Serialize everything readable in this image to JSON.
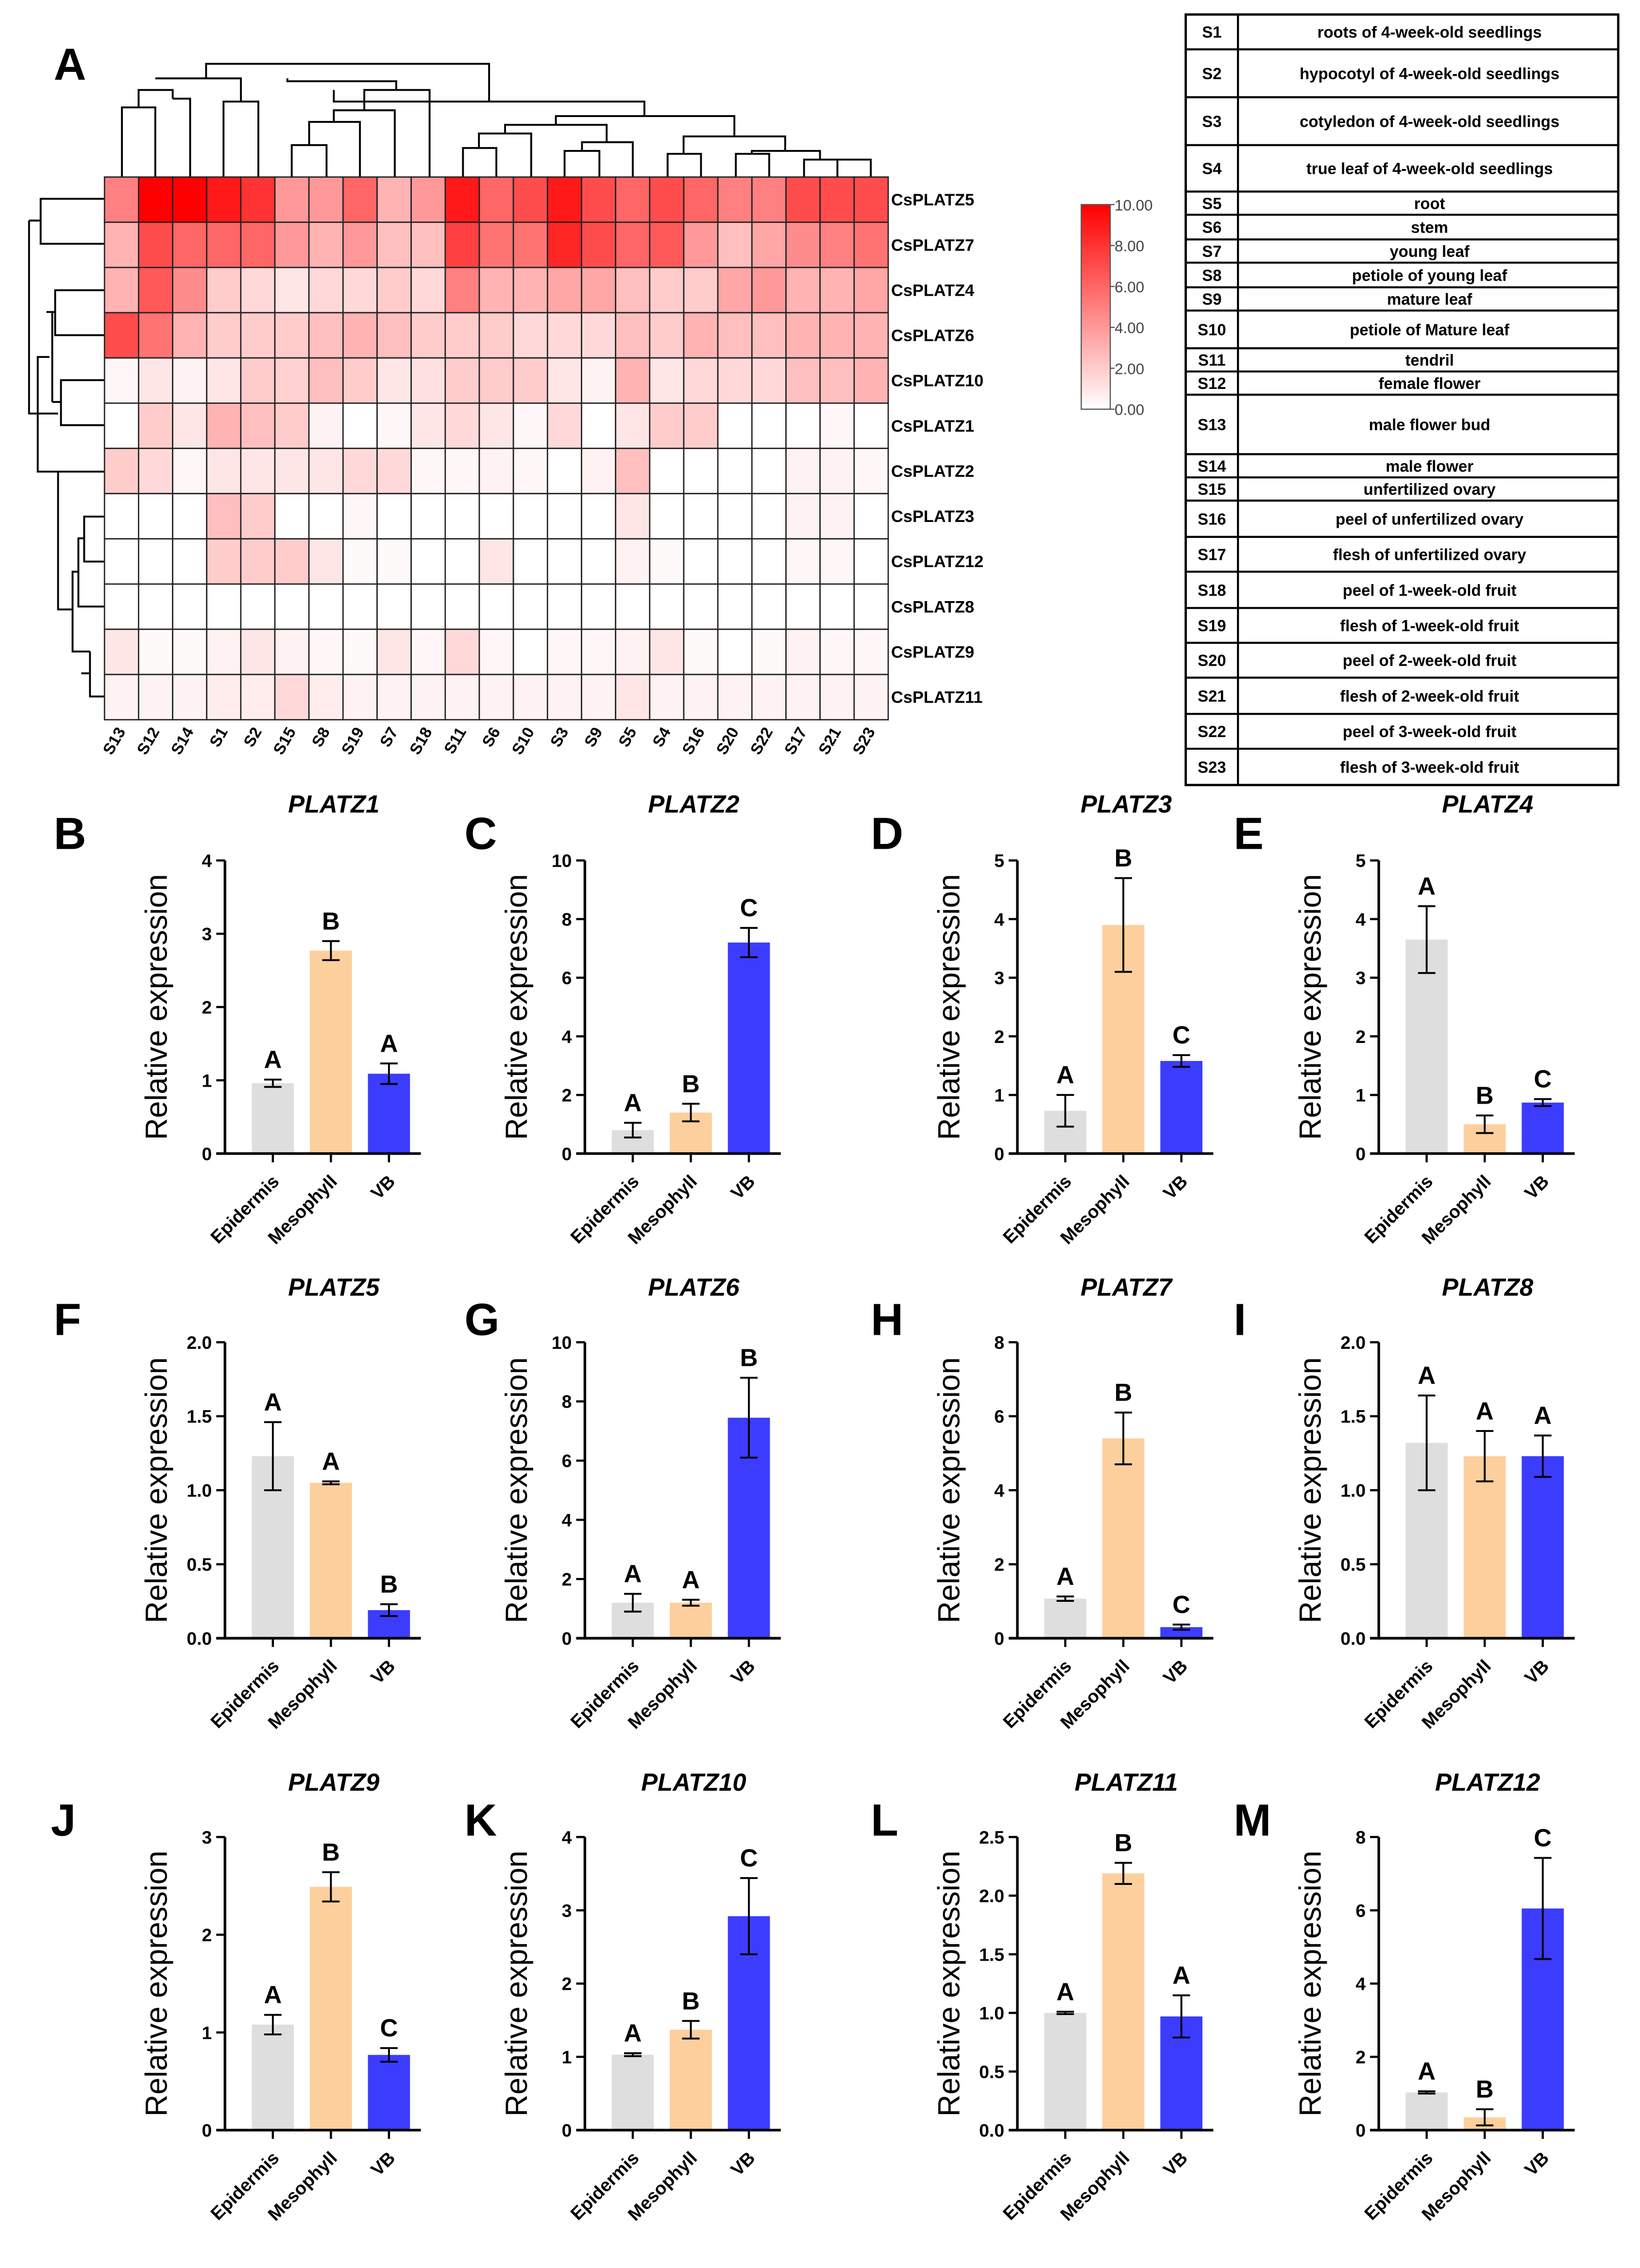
{
  "panel_letters": [
    "A",
    "B",
    "C",
    "D",
    "E",
    "F",
    "G",
    "H",
    "I",
    "J",
    "K",
    "L",
    "M"
  ],
  "legend_table": [
    [
      "S1",
      "roots of 4-week-old seedlings"
    ],
    [
      "S2",
      "hypocotyl of 4-week-old seedlings"
    ],
    [
      "S3",
      "cotyledon of 4-week-old seedlings"
    ],
    [
      "S4",
      "true leaf of 4-week-old seedlings"
    ],
    [
      "S5",
      "root"
    ],
    [
      "S6",
      "stem"
    ],
    [
      "S7",
      "young leaf"
    ],
    [
      "S8",
      "petiole of young leaf"
    ],
    [
      "S9",
      "mature leaf"
    ],
    [
      "S10",
      "petiole of Mature leaf"
    ],
    [
      "S11",
      "tendril"
    ],
    [
      "S12",
      "female flower"
    ],
    [
      "S13",
      "male flower bud"
    ],
    [
      "S14",
      "male flower"
    ],
    [
      "S15",
      "unfertilized ovary"
    ],
    [
      "S16",
      "peel of unfertilized ovary"
    ],
    [
      "S17",
      "flesh of unfertilized ovary"
    ],
    [
      "S18",
      "peel of 1-week-old fruit"
    ],
    [
      "S19",
      "flesh of 1-week-old fruit"
    ],
    [
      "S20",
      "peel of 2-week-old fruit"
    ],
    [
      "S21",
      "flesh of 2-week-old fruit"
    ],
    [
      "S22",
      "peel of 3-week-old fruit"
    ],
    [
      "S23",
      "flesh of 3-week-old fruit"
    ]
  ],
  "colors": {
    "low": "#ffffff",
    "high": "#ff0000",
    "epidermis": "#dedede",
    "mesophyll": "#fdcf9d",
    "vb": "#3c3cff"
  },
  "chart_data": [
    {
      "type": "heatmap",
      "columns": [
        "S13",
        "S12",
        "S14",
        "S1",
        "S2",
        "S15",
        "S8",
        "S19",
        "S7",
        "S18",
        "S11",
        "S6",
        "S10",
        "S3",
        "S9",
        "S5",
        "S4",
        "S16",
        "S20",
        "S22",
        "S17",
        "S21",
        "S23"
      ],
      "rows": [
        "CsPLATZ5",
        "CsPLATZ7",
        "CsPLATZ4",
        "CsPLATZ6",
        "CsPLATZ10",
        "CsPLATZ1",
        "CsPLATZ2",
        "CsPLATZ3",
        "CsPLATZ12",
        "CsPLATZ8",
        "CsPLATZ9",
        "CsPLATZ11"
      ],
      "values": [
        [
          5,
          10,
          10,
          9,
          8,
          4,
          4,
          6,
          3,
          4,
          9,
          6,
          7,
          9,
          7,
          6,
          7,
          6,
          5,
          5,
          7,
          7,
          7
        ],
        [
          3,
          7,
          6,
          6,
          6,
          4,
          3,
          4,
          2.5,
          2.5,
          7.5,
          5.5,
          5.5,
          8.5,
          7,
          6,
          6.5,
          4,
          2.5,
          3.5,
          4.5,
          5,
          5.5
        ],
        [
          3,
          6.5,
          4.5,
          2,
          1.5,
          1,
          1.5,
          1.5,
          2,
          1.5,
          5,
          3,
          3,
          3.5,
          3.5,
          2.5,
          2,
          2,
          3.5,
          4,
          3,
          3,
          3.5
        ],
        [
          7,
          5.5,
          3,
          2,
          2,
          2,
          2.5,
          3,
          2.5,
          2,
          2,
          2,
          1.5,
          1.5,
          1.5,
          2.5,
          2,
          3,
          2.5,
          2.5,
          3,
          3,
          3
        ],
        [
          0.3,
          1,
          0.5,
          1,
          2,
          1.8,
          2.5,
          2,
          1,
          1.2,
          2,
          2,
          2,
          1,
          0.5,
          3,
          1,
          1.5,
          1.5,
          1.5,
          2.5,
          2.5,
          3
        ],
        [
          0,
          2,
          1,
          3,
          2.5,
          2,
          0.5,
          0,
          0.3,
          1,
          1.5,
          1,
          0.3,
          1.5,
          0,
          1,
          2,
          2,
          0,
          0,
          0,
          0.3,
          0
        ],
        [
          2,
          1.5,
          0.3,
          1,
          1,
          1,
          1,
          1.5,
          1.5,
          0.3,
          0.3,
          0.5,
          0.3,
          0,
          0.5,
          2.5,
          0,
          0,
          0,
          0,
          0.5,
          0.5,
          0.3
        ],
        [
          0,
          0,
          0,
          2.5,
          2,
          0,
          0,
          0.3,
          0,
          0,
          0,
          0,
          0,
          0,
          0,
          1,
          0,
          0,
          0,
          0,
          0.5,
          0.5,
          0
        ],
        [
          0,
          0,
          0,
          2,
          2,
          2,
          1,
          0.2,
          0.2,
          0,
          0,
          1,
          0,
          0,
          0,
          0.5,
          0.2,
          0,
          0,
          0,
          0.3,
          0.3,
          0
        ],
        [
          0,
          0,
          0,
          0,
          0,
          0,
          0,
          0,
          0,
          0,
          0,
          0,
          0,
          0,
          0,
          0,
          0,
          0,
          0,
          0,
          0,
          0,
          0
        ],
        [
          1,
          0.2,
          0.2,
          0.5,
          1,
          0.5,
          0.3,
          0.2,
          1,
          0.3,
          1.5,
          0.3,
          0,
          0.3,
          0.3,
          0.5,
          1,
          0.2,
          0,
          0.2,
          0.5,
          0.3,
          0.3
        ],
        [
          0.5,
          0.5,
          0.5,
          0.7,
          0.7,
          1.5,
          0.7,
          0.5,
          0.5,
          0.5,
          0.5,
          0.5,
          0.5,
          0.5,
          0.5,
          1,
          0.5,
          0.5,
          0.5,
          0.5,
          0.5,
          0.5,
          0.5
        ]
      ],
      "range": [
        0,
        10
      ],
      "colorbar_ticks": [
        "0.00",
        "2.00",
        "4.00",
        "6.00",
        "8.00",
        "10.00"
      ]
    },
    {
      "type": "bar",
      "title": "PLATZ1",
      "ylabel": "Relative expression",
      "categories": [
        "Epidermis",
        "Mesophyll",
        "VB"
      ],
      "values": [
        0.96,
        2.77,
        1.09
      ],
      "errors": [
        0.05,
        0.13,
        0.14
      ],
      "letters": [
        "A",
        "B",
        "A"
      ],
      "ylim": [
        0,
        4
      ],
      "ystep": 1
    },
    {
      "type": "bar",
      "title": "PLATZ2",
      "ylabel": "Relative expression",
      "categories": [
        "Epidermis",
        "Mesophyll",
        "VB"
      ],
      "values": [
        0.8,
        1.4,
        7.2
      ],
      "errors": [
        0.25,
        0.3,
        0.5
      ],
      "letters": [
        "A",
        "B",
        "C"
      ],
      "ylim": [
        0,
        10
      ],
      "ystep": 2
    },
    {
      "type": "bar",
      "title": "PLATZ3",
      "ylabel": "Relative expression",
      "categories": [
        "Epidermis",
        "Mesophyll",
        "VB"
      ],
      "values": [
        0.73,
        3.9,
        1.58
      ],
      "errors": [
        0.27,
        0.8,
        0.1
      ],
      "letters": [
        "A",
        "B",
        "C"
      ],
      "ylim": [
        0,
        5
      ],
      "ystep": 1
    },
    {
      "type": "bar",
      "title": "PLATZ4",
      "ylabel": "Relative expression",
      "categories": [
        "Epidermis",
        "Mesophyll",
        "VB"
      ],
      "values": [
        3.65,
        0.5,
        0.87
      ],
      "errors": [
        0.57,
        0.15,
        0.06
      ],
      "letters": [
        "A",
        "B",
        "C"
      ],
      "ylim": [
        0,
        5
      ],
      "ystep": 1
    },
    {
      "type": "bar",
      "title": "PLATZ5",
      "ylabel": "Relative expression",
      "categories": [
        "Epidermis",
        "Mesophyll",
        "VB"
      ],
      "values": [
        1.23,
        1.05,
        0.19
      ],
      "errors": [
        0.23,
        0.01,
        0.04
      ],
      "letters": [
        "A",
        "A",
        "B"
      ],
      "ylim": [
        0,
        2
      ],
      "ystep": 0.5
    },
    {
      "type": "bar",
      "title": "PLATZ6",
      "ylabel": "Relative expression",
      "categories": [
        "Epidermis",
        "Mesophyll",
        "VB"
      ],
      "values": [
        1.2,
        1.2,
        7.45
      ],
      "errors": [
        0.3,
        0.1,
        1.35
      ],
      "letters": [
        "A",
        "A",
        "B"
      ],
      "ylim": [
        0,
        10
      ],
      "ystep": 2
    },
    {
      "type": "bar",
      "title": "PLATZ7",
      "ylabel": "Relative expression",
      "categories": [
        "Epidermis",
        "Mesophyll",
        "VB"
      ],
      "values": [
        1.07,
        5.4,
        0.3
      ],
      "errors": [
        0.06,
        0.7,
        0.07
      ],
      "letters": [
        "A",
        "B",
        "C"
      ],
      "ylim": [
        0,
        8
      ],
      "ystep": 2
    },
    {
      "type": "bar",
      "title": "PLATZ8",
      "ylabel": "Relative expression",
      "categories": [
        "Epidermis",
        "Mesophyll",
        "VB"
      ],
      "values": [
        1.32,
        1.23,
        1.23
      ],
      "errors": [
        0.32,
        0.17,
        0.14
      ],
      "letters": [
        "A",
        "A",
        "A"
      ],
      "ylim": [
        0,
        2
      ],
      "ystep": 0.5
    },
    {
      "type": "bar",
      "title": "PLATZ9",
      "ylabel": "Relative expression",
      "categories": [
        "Epidermis",
        "Mesophyll",
        "VB"
      ],
      "values": [
        1.08,
        2.49,
        0.77
      ],
      "errors": [
        0.1,
        0.15,
        0.07
      ],
      "letters": [
        "A",
        "B",
        "C"
      ],
      "ylim": [
        0,
        3
      ],
      "ystep": 1
    },
    {
      "type": "bar",
      "title": "PLATZ10",
      "ylabel": "Relative expression",
      "categories": [
        "Epidermis",
        "Mesophyll",
        "VB"
      ],
      "values": [
        1.03,
        1.37,
        2.92
      ],
      "errors": [
        0.02,
        0.12,
        0.52
      ],
      "letters": [
        "A",
        "B",
        "C"
      ],
      "ylim": [
        0,
        4
      ],
      "ystep": 1
    },
    {
      "type": "bar",
      "title": "PLATZ11",
      "ylabel": "Relative expression",
      "categories": [
        "Epidermis",
        "Mesophyll",
        "VB"
      ],
      "values": [
        1.0,
        2.19,
        0.97
      ],
      "errors": [
        0.01,
        0.09,
        0.18
      ],
      "letters": [
        "A",
        "B",
        "A"
      ],
      "ylim": [
        0,
        2.5
      ],
      "ystep": 0.5
    },
    {
      "type": "bar",
      "title": "PLATZ12",
      "ylabel": "Relative expression",
      "categories": [
        "Epidermis",
        "Mesophyll",
        "VB"
      ],
      "values": [
        1.03,
        0.35,
        6.05
      ],
      "errors": [
        0.03,
        0.22,
        1.38
      ],
      "letters": [
        "A",
        "B",
        "C"
      ],
      "ylim": [
        0,
        8
      ],
      "ystep": 2
    }
  ]
}
